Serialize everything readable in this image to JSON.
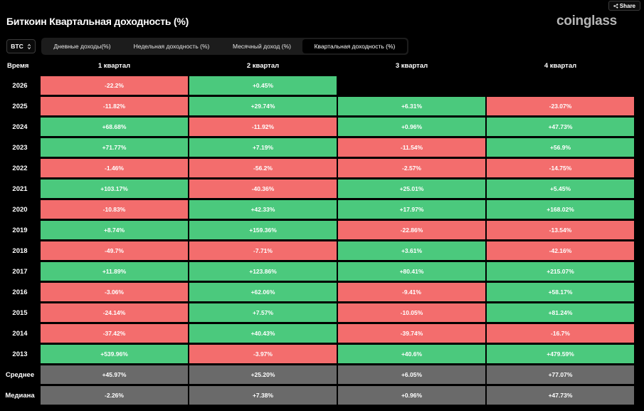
{
  "header": {
    "title": "Биткоин Квартальная доходность (%)",
    "brand": "coinglass",
    "share_label": "Share"
  },
  "controls": {
    "asset": "BTC",
    "tabs": [
      {
        "label": "Дневные доходы(%)",
        "active": false
      },
      {
        "label": "Недельная доходность (%)",
        "active": false
      },
      {
        "label": "Месячный доход (%)",
        "active": false
      },
      {
        "label": "Квартальная доходность (%)",
        "active": true
      }
    ]
  },
  "colors": {
    "positive": "#4bc97d",
    "negative": "#f36d6d",
    "summary": "#6a6a6a",
    "background": "#000000"
  },
  "table": {
    "corner_label": "Время",
    "columns": [
      "1 квартал",
      "2 квартал",
      "3 квартал",
      "4 квартал"
    ],
    "rows": [
      {
        "label": "2026",
        "cells": [
          "-22.2%",
          "+0.45%",
          null,
          null
        ]
      },
      {
        "label": "2025",
        "cells": [
          "-11.82%",
          "+29.74%",
          "+6.31%",
          "-23.07%"
        ]
      },
      {
        "label": "2024",
        "cells": [
          "+68.68%",
          "-11.92%",
          "+0.96%",
          "+47.73%"
        ]
      },
      {
        "label": "2023",
        "cells": [
          "+71.77%",
          "+7.19%",
          "-11.54%",
          "+56.9%"
        ]
      },
      {
        "label": "2022",
        "cells": [
          "-1.46%",
          "-56.2%",
          "-2.57%",
          "-14.75%"
        ]
      },
      {
        "label": "2021",
        "cells": [
          "+103.17%",
          "-40.36%",
          "+25.01%",
          "+5.45%"
        ]
      },
      {
        "label": "2020",
        "cells": [
          "-10.83%",
          "+42.33%",
          "+17.97%",
          "+168.02%"
        ]
      },
      {
        "label": "2019",
        "cells": [
          "+8.74%",
          "+159.36%",
          "-22.86%",
          "-13.54%"
        ]
      },
      {
        "label": "2018",
        "cells": [
          "-49.7%",
          "-7.71%",
          "+3.61%",
          "-42.16%"
        ]
      },
      {
        "label": "2017",
        "cells": [
          "+11.89%",
          "+123.86%",
          "+80.41%",
          "+215.07%"
        ]
      },
      {
        "label": "2016",
        "cells": [
          "-3.06%",
          "+62.06%",
          "-9.41%",
          "+58.17%"
        ]
      },
      {
        "label": "2015",
        "cells": [
          "-24.14%",
          "+7.57%",
          "-10.05%",
          "+81.24%"
        ]
      },
      {
        "label": "2014",
        "cells": [
          "-37.42%",
          "+40.43%",
          "-39.74%",
          "-16.7%"
        ]
      },
      {
        "label": "2013",
        "cells": [
          "+539.96%",
          "-3.97%",
          "+40.6%",
          "+479.59%"
        ]
      }
    ],
    "summary_rows": [
      {
        "label": "Среднее",
        "cells": [
          "+45.97%",
          "+25.20%",
          "+6.05%",
          "+77.07%"
        ]
      },
      {
        "label": "Медиана",
        "cells": [
          "-2.26%",
          "+7.38%",
          "+0.96%",
          "+47.73%"
        ]
      }
    ]
  }
}
